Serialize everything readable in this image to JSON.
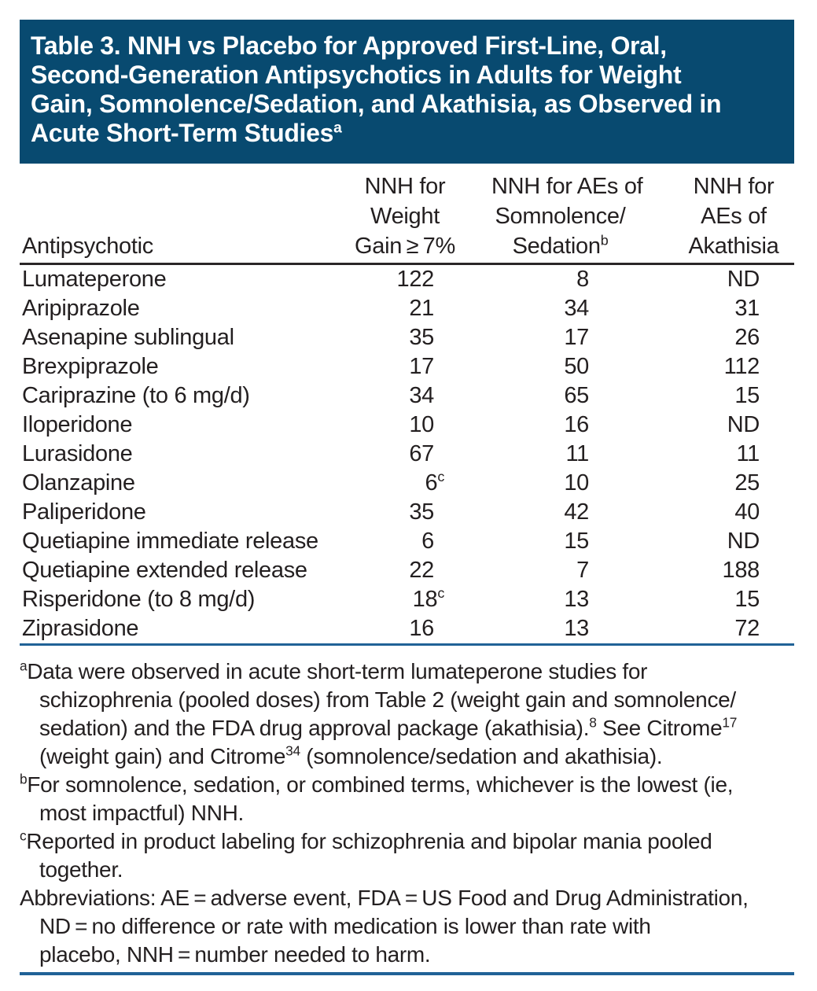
{
  "colors": {
    "title_background": "#084a70",
    "title_text": "#ffffff",
    "body_text": "#231f20",
    "header_rule": "#2a2627",
    "blue_rule": "#206297"
  },
  "title": {
    "lines": [
      "Table 3. NNH vs Placebo for Approved First-Line, Oral,",
      "Second-Generation Antipsychotics in Adults for Weight",
      "Gain, Somnolence/Sedation, and Akathisia, as Observed in",
      "Acute Short-Term Studies"
    ],
    "superscript": "a"
  },
  "table": {
    "header": {
      "col1": "Antipsychotic",
      "col2_lines": [
        "NNH for",
        "Weight",
        "Gain ≥ 7%"
      ],
      "col3_lines": [
        "NNH for AEs of",
        "Somnolence/",
        "Sedation"
      ],
      "col3_sup": "b",
      "col4_lines": [
        "NNH for",
        "AEs of",
        "Akathisia"
      ]
    },
    "rows": [
      {
        "drug": "Lumateperone",
        "weight_gain": "122",
        "somnolence": "8",
        "akathisia": "ND"
      },
      {
        "drug": "Aripiprazole",
        "weight_gain": "21",
        "somnolence": "34",
        "akathisia": "31"
      },
      {
        "drug": "Asenapine sublingual",
        "weight_gain": "35",
        "somnolence": "17",
        "akathisia": "26"
      },
      {
        "drug": "Brexpiprazole",
        "weight_gain": "17",
        "somnolence": "50",
        "akathisia": "112"
      },
      {
        "drug": "Cariprazine (to 6 mg/d)",
        "weight_gain": "34",
        "somnolence": "65",
        "akathisia": "15"
      },
      {
        "drug": "Iloperidone",
        "weight_gain": "10",
        "somnolence": "16",
        "akathisia": "ND"
      },
      {
        "drug": "Lurasidone",
        "weight_gain": "67",
        "somnolence": "11",
        "akathisia": "11"
      },
      {
        "drug": "Olanzapine",
        "weight_gain": "6",
        "weight_gain_sup": "c",
        "somnolence": "10",
        "akathisia": "25"
      },
      {
        "drug": "Paliperidone",
        "weight_gain": "35",
        "somnolence": "42",
        "akathisia": "40"
      },
      {
        "drug": "Quetiapine immediate release",
        "weight_gain": "6",
        "somnolence": "15",
        "akathisia": "ND"
      },
      {
        "drug": "Quetiapine extended release",
        "weight_gain": "22",
        "somnolence": "7",
        "akathisia": "188"
      },
      {
        "drug": "Risperidone (to 8 mg/d)",
        "weight_gain": "18",
        "weight_gain_sup": "c",
        "somnolence": "13",
        "akathisia": "15"
      },
      {
        "drug": "Ziprasidone",
        "weight_gain": "16",
        "somnolence": "13",
        "akathisia": "72"
      }
    ]
  },
  "footnotes": [
    {
      "marker": "a",
      "lines": [
        [
          {
            "t": "Data were observed in acute short-term lumateperone studies for"
          }
        ],
        [
          {
            "t": "schizophrenia (pooled doses) from Table 2 (weight gain and somnolence/"
          }
        ],
        [
          {
            "t": "sedation) and the FDA drug approval package (akathisia)."
          },
          {
            "s": "8"
          },
          {
            "t": " See Citrome"
          },
          {
            "s": "17"
          }
        ],
        [
          {
            "t": "(weight gain) and Citrome"
          },
          {
            "s": "34"
          },
          {
            "t": " (somnolence/sedation and akathisia)."
          }
        ]
      ]
    },
    {
      "marker": "b",
      "lines": [
        [
          {
            "t": "For somnolence, sedation, or combined terms, whichever is the lowest (ie,"
          }
        ],
        [
          {
            "t": "most impactful) NNH."
          }
        ]
      ]
    },
    {
      "marker": "c",
      "lines": [
        [
          {
            "t": "Reported in product labeling for schizophrenia and bipolar mania pooled"
          }
        ],
        [
          {
            "t": "together."
          }
        ]
      ]
    },
    {
      "marker": "",
      "lines": [
        [
          {
            "t": "Abbreviations: AE = adverse event, FDA = US Food and Drug Administration,"
          }
        ],
        [
          {
            "t": "ND = no difference or rate with medication is lower than rate with"
          }
        ],
        [
          {
            "t": "placebo, NNH = number needed to harm."
          }
        ]
      ]
    }
  ]
}
